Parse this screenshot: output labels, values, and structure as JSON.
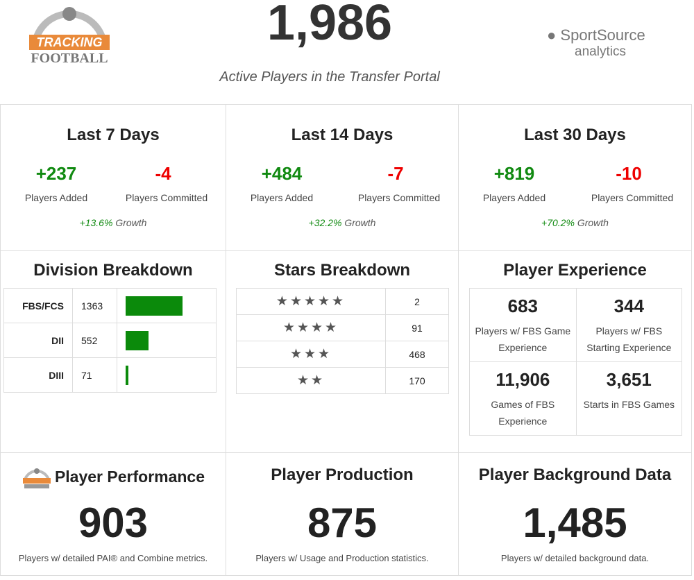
{
  "header": {
    "logo": {
      "line1": "TRACKING",
      "line2": "FOOTBALL"
    },
    "total": "1,986",
    "subtitle": "Active Players in the Transfer Portal",
    "brand": {
      "name": "SportSource",
      "tagline": "analytics"
    }
  },
  "periods": [
    {
      "title": "Last 7 Days",
      "added": "+237",
      "added_label": "Players Added",
      "committed": "-4",
      "committed_label": "Players Committed",
      "growth": "+13.6%",
      "growth_label": "Growth"
    },
    {
      "title": "Last 14 Days",
      "added": "+484",
      "added_label": "Players Added",
      "committed": "-7",
      "committed_label": "Players Committed",
      "growth": "+32.2%",
      "growth_label": "Growth"
    },
    {
      "title": "Last 30 Days",
      "added": "+819",
      "added_label": "Players Added",
      "committed": "-10",
      "committed_label": "Players Committed",
      "growth": "+70.2%",
      "growth_label": "Growth"
    }
  ],
  "division": {
    "title": "Division Breakdown",
    "rows": [
      {
        "label": "FBS/FCS",
        "count": 1363
      },
      {
        "label": "DII",
        "count": 552
      },
      {
        "label": "DIII",
        "count": 71
      }
    ]
  },
  "stars": {
    "title": "Stars Breakdown",
    "rows": [
      {
        "stars": "★★★★★",
        "count": 2
      },
      {
        "stars": "★★★★",
        "count": 91
      },
      {
        "stars": "★★★",
        "count": 468
      },
      {
        "stars": "★★",
        "count": 170
      }
    ]
  },
  "experience": {
    "title": "Player Experience",
    "cells": [
      {
        "value": "683",
        "label": "Players w/ FBS Game Experience"
      },
      {
        "value": "344",
        "label": "Players w/ FBS Starting Experience"
      },
      {
        "value": "11,906",
        "label": "Games of FBS Experience"
      },
      {
        "value": "3,651",
        "label": "Starts in FBS Games"
      }
    ]
  },
  "bottom": [
    {
      "title": "Player Performance",
      "value": "903",
      "note": "Players w/ detailed PAI® and Combine metrics."
    },
    {
      "title": "Player Production",
      "value": "875",
      "note": "Players w/ Usage and Production statistics."
    },
    {
      "title": "Player Background Data",
      "value": "1,485",
      "note": "Players w/ detailed background data."
    }
  ]
}
